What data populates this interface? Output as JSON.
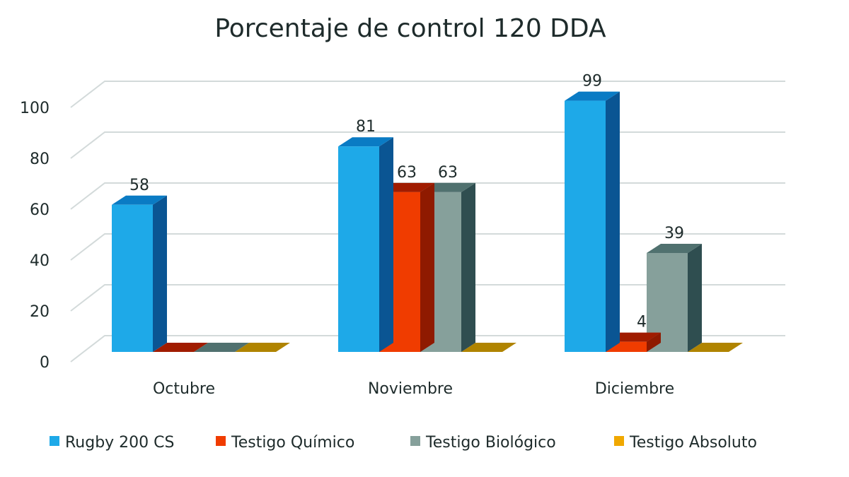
{
  "chart_data": {
    "type": "bar",
    "title": "Porcentaje de control 120 DDA",
    "categories": [
      "Octubre",
      "Noviembre",
      "Diciembre"
    ],
    "series": [
      {
        "name": "Rugby 200 CS",
        "values": [
          58,
          81,
          99
        ],
        "color": "#1ea9e8",
        "side": "#0a5593",
        "top": "#0a7bc4"
      },
      {
        "name": "Testigo Químico",
        "values": [
          0,
          63,
          4
        ],
        "color": "#f03c00",
        "side": "#8f1a00",
        "top": "#a01c00"
      },
      {
        "name": "Testigo Biológico",
        "values": [
          0,
          63,
          39
        ],
        "color": "#86a09b",
        "side": "#2f4e50",
        "top": "#50716f"
      },
      {
        "name": "Testigo Absoluto",
        "values": [
          0,
          0,
          0
        ],
        "color": "#f0a800",
        "side": "#8a6200",
        "top": "#b08400"
      }
    ],
    "data_labels": [
      [
        "58",
        null,
        null,
        null
      ],
      [
        "81",
        "63",
        "63",
        null
      ],
      [
        "99",
        "4",
        "39",
        null
      ]
    ],
    "ylim": [
      0,
      100
    ],
    "yticks": [
      "0",
      "20",
      "40",
      "60",
      "80",
      "100"
    ],
    "grid": true,
    "legend_position": "bottom",
    "style": "3d-clustered"
  }
}
